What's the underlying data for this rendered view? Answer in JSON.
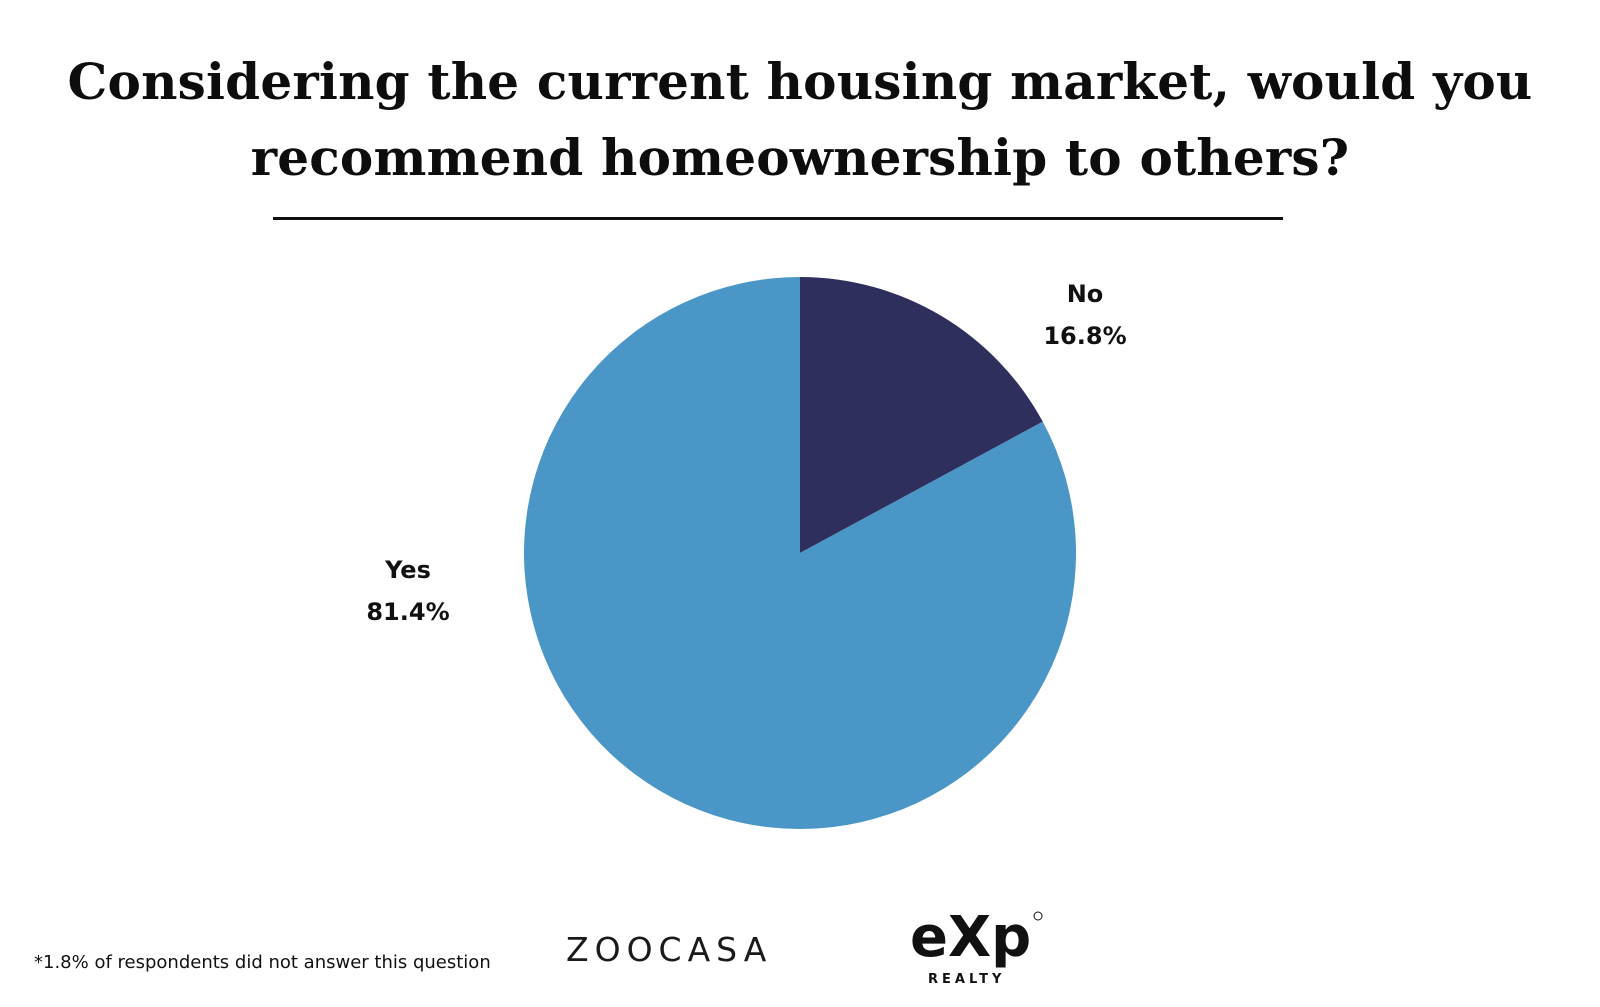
{
  "title": {
    "line1": "Considering the current housing market, would you",
    "line2": "recommend homeownership to others?"
  },
  "footnote": "*1.8% of respondents did not answer this question",
  "logos": {
    "zoocasa": "ZOOCASA",
    "exp": "eXp",
    "exp_sub": "REALTY"
  },
  "colors": {
    "yes": "#4A96C6",
    "no": "#2E2F5D"
  },
  "chart_data": {
    "type": "pie",
    "categories": [
      "No",
      "Yes"
    ],
    "values": [
      16.8,
      81.4
    ],
    "labels": [
      "16.8%",
      "81.4%"
    ],
    "colors": [
      "#2E2F5D",
      "#4A96C6"
    ],
    "start_angle": "top (12 o'clock), clockwise"
  }
}
